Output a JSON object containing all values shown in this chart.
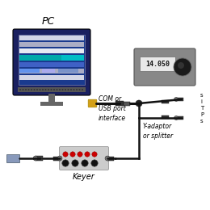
{
  "pc_label": "PC",
  "keyer_label": "Keyer",
  "com_label": "COM or\nUSB port\ninterface",
  "radio_freq": "14.050",
  "y_adaptor_label": "Y-adaptor\nor splitter",
  "right_text_lines": [
    "s",
    "i",
    "T",
    "P",
    "s"
  ],
  "monitor_outer": "#1a2060",
  "monitor_screen_bg": "#1a3a8e",
  "monitor_stand_color": "#666666",
  "radio_body_color": "#888888",
  "keyer_body_color": "#cccccc",
  "cable_color": "#111111",
  "led_color": "#cc0000",
  "gold_connector": "#d4a017",
  "screen_lines": [
    "#e8e8f0",
    "#bbbbcc",
    "#ffffff",
    "#00cccc",
    "#4466cc",
    "#bbbbcc",
    "#e8e8f0"
  ],
  "teal_color": "#00aaaa"
}
